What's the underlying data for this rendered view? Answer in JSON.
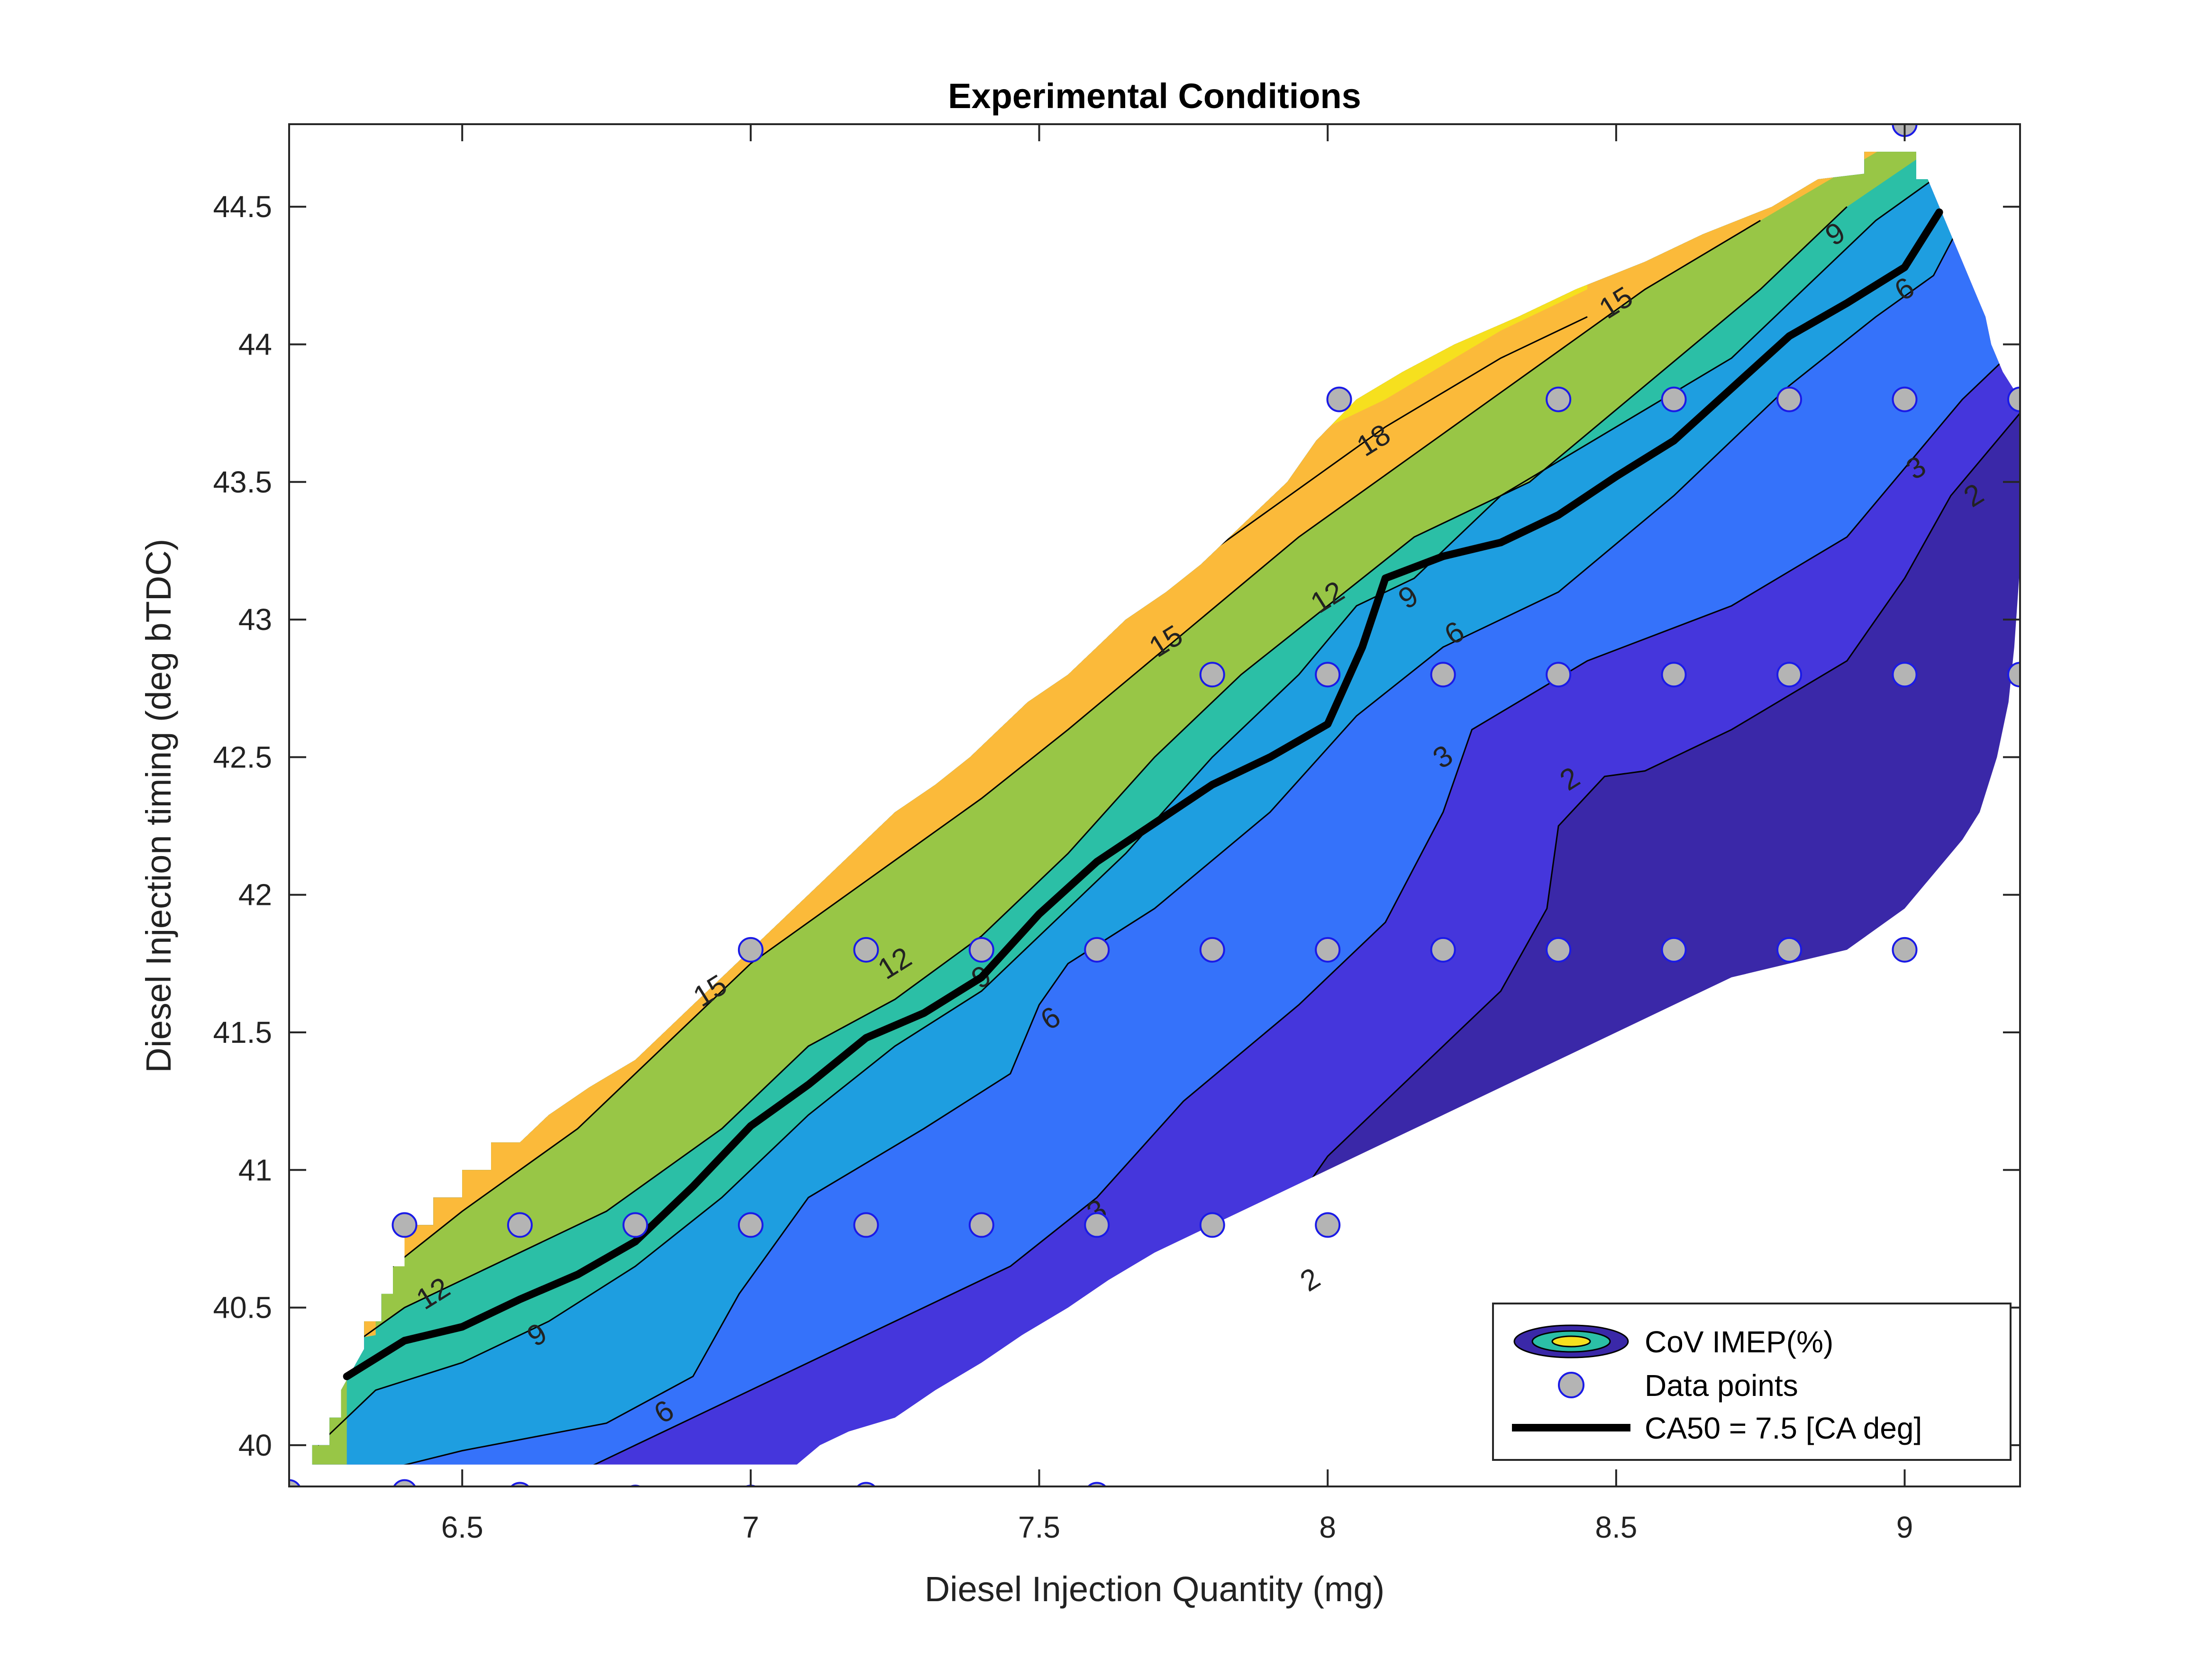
{
  "chart_data": {
    "type": "contour",
    "title": "Experimental Conditions",
    "xlabel": "Diesel Injection Quantity (mg)",
    "ylabel": "Diesel Injection timing (deg bTDC)",
    "xlim": [
      6.2,
      9.2
    ],
    "ylim": [
      39.85,
      44.8
    ],
    "xticks": [
      "6.5",
      "7",
      "7.5",
      "8",
      "8.5",
      "9"
    ],
    "yticks": [
      "40",
      "40.5",
      "41",
      "41.5",
      "42",
      "42.5",
      "43",
      "43.5",
      "44",
      "44.5"
    ],
    "grid": false,
    "legend": {
      "placement": "bottom-right",
      "entries": [
        "CoV IMEP(%)",
        "Data points",
        "CA50 = 7.5 [CA deg]"
      ]
    },
    "colors": {
      "band_1": "#3A28A8",
      "band_2": "#4536DC",
      "band_3": "#3572FA",
      "band_4": "#1E9EE0",
      "band_5": "#2BBFA6",
      "band_6": "#98C646",
      "band_7": "#FBBA3A",
      "band_8": "#F6E01E",
      "data_point_fill": "#B4B4B4",
      "data_point_edge": "#1A1AE6"
    },
    "contour_levels": [
      2,
      3,
      6,
      9,
      12,
      15,
      18
    ],
    "contour_labels": [
      {
        "text": "2",
        "x": 9.12,
        "y": 43.45
      },
      {
        "text": "2",
        "x": 8.42,
        "y": 42.42
      },
      {
        "text": "2",
        "x": 7.97,
        "y": 40.6
      },
      {
        "text": "3",
        "x": 9.02,
        "y": 43.55
      },
      {
        "text": "3",
        "x": 8.2,
        "y": 42.5
      },
      {
        "text": "3",
        "x": 7.6,
        "y": 40.85
      },
      {
        "text": "6",
        "x": 9.0,
        "y": 44.2
      },
      {
        "text": "6",
        "x": 8.22,
        "y": 42.95
      },
      {
        "text": "6",
        "x": 7.52,
        "y": 41.55
      },
      {
        "text": "6",
        "x": 6.85,
        "y": 40.12
      },
      {
        "text": "9",
        "x": 8.88,
        "y": 44.4
      },
      {
        "text": "9",
        "x": 8.14,
        "y": 43.08
      },
      {
        "text": "9",
        "x": 7.4,
        "y": 41.7
      },
      {
        "text": "9",
        "x": 6.63,
        "y": 40.4
      },
      {
        "text": "12",
        "x": 8.0,
        "y": 43.08
      },
      {
        "text": "12",
        "x": 7.25,
        "y": 41.75
      },
      {
        "text": "12",
        "x": 6.45,
        "y": 40.55
      },
      {
        "text": "15",
        "x": 8.5,
        "y": 44.15
      },
      {
        "text": "15",
        "x": 7.72,
        "y": 42.92
      },
      {
        "text": "15",
        "x": 6.93,
        "y": 41.65
      },
      {
        "text": "18",
        "x": 8.08,
        "y": 43.65
      }
    ],
    "series": [
      {
        "name": "Data points",
        "type": "scatter",
        "points": [
          [
            9.0,
            44.8
          ],
          [
            8.02,
            43.8
          ],
          [
            8.4,
            43.8
          ],
          [
            8.6,
            43.8
          ],
          [
            8.8,
            43.8
          ],
          [
            9.0,
            43.8
          ],
          [
            9.2,
            43.8
          ],
          [
            7.8,
            42.8
          ],
          [
            8.0,
            42.8
          ],
          [
            8.2,
            42.8
          ],
          [
            8.4,
            42.8
          ],
          [
            8.6,
            42.8
          ],
          [
            8.8,
            42.8
          ],
          [
            9.0,
            42.8
          ],
          [
            9.2,
            42.8
          ],
          [
            7.0,
            41.8
          ],
          [
            7.2,
            41.8
          ],
          [
            7.4,
            41.8
          ],
          [
            7.6,
            41.8
          ],
          [
            7.8,
            41.8
          ],
          [
            8.0,
            41.8
          ],
          [
            8.2,
            41.8
          ],
          [
            8.4,
            41.8
          ],
          [
            8.6,
            41.8
          ],
          [
            8.8,
            41.8
          ],
          [
            9.0,
            41.8
          ],
          [
            6.4,
            40.8
          ],
          [
            6.6,
            40.8
          ],
          [
            6.8,
            40.8
          ],
          [
            7.0,
            40.8
          ],
          [
            7.2,
            40.8
          ],
          [
            7.4,
            40.8
          ],
          [
            7.6,
            40.8
          ],
          [
            7.8,
            40.8
          ],
          [
            8.0,
            40.8
          ],
          [
            6.2,
            39.83
          ],
          [
            6.4,
            39.83
          ],
          [
            6.6,
            39.82
          ],
          [
            6.8,
            39.81
          ],
          [
            7.0,
            39.81
          ],
          [
            7.2,
            39.82
          ],
          [
            7.6,
            39.82
          ]
        ]
      },
      {
        "name": "CA50 = 7.5 [CA deg]",
        "type": "line",
        "points": [
          [
            6.3,
            40.25
          ],
          [
            6.4,
            40.38
          ],
          [
            6.5,
            40.43
          ],
          [
            6.6,
            40.53
          ],
          [
            6.7,
            40.62
          ],
          [
            6.8,
            40.74
          ],
          [
            6.9,
            40.94
          ],
          [
            7.0,
            41.16
          ],
          [
            7.1,
            41.31
          ],
          [
            7.2,
            41.48
          ],
          [
            7.3,
            41.57
          ],
          [
            7.4,
            41.7
          ],
          [
            7.5,
            41.93
          ],
          [
            7.6,
            42.12
          ],
          [
            7.7,
            42.26
          ],
          [
            7.8,
            42.4
          ],
          [
            7.9,
            42.5
          ],
          [
            8.0,
            42.62
          ],
          [
            8.06,
            42.9
          ],
          [
            8.1,
            43.15
          ],
          [
            8.2,
            43.23
          ],
          [
            8.3,
            43.28
          ],
          [
            8.4,
            43.38
          ],
          [
            8.5,
            43.52
          ],
          [
            8.6,
            43.65
          ],
          [
            8.7,
            43.84
          ],
          [
            8.8,
            44.03
          ],
          [
            8.9,
            44.15
          ],
          [
            9.0,
            44.28
          ],
          [
            9.06,
            44.48
          ]
        ]
      }
    ],
    "bands": [
      {
        "level": "0-2",
        "color_key": "band_1",
        "region": {
          "lower": [
            [
              7.2,
              39.9
            ],
            [
              9.2,
              39.9
            ]
          ],
          "upper": [
            [
              7.2,
              39.9
            ],
            [
              7.4,
              40.2
            ],
            [
              7.6,
              40.4
            ],
            [
              7.8,
              40.75
            ],
            [
              8.0,
              41.0
            ],
            [
              8.1,
              41.3
            ],
            [
              8.2,
              41.6
            ],
            [
              8.4,
              41.95
            ],
            [
              8.42,
              42.3
            ],
            [
              8.5,
              42.45
            ],
            [
              8.7,
              42.55
            ],
            [
              8.9,
              42.8
            ],
            [
              9.05,
              43.2
            ],
            [
              9.1,
              43.5
            ],
            [
              9.2,
              43.7
            ]
          ]
        }
      },
      {
        "level": "2-3",
        "color_key": "band_2"
      },
      {
        "level": "3-6",
        "color_key": "band_3"
      },
      {
        "level": "6-9",
        "color_key": "band_4"
      },
      {
        "level": "9-12",
        "color_key": "band_5"
      },
      {
        "level": "12-15",
        "color_key": "band_6"
      },
      {
        "level": "15-18",
        "color_key": "band_7"
      },
      {
        "level": ">18",
        "color_key": "band_8"
      }
    ]
  }
}
